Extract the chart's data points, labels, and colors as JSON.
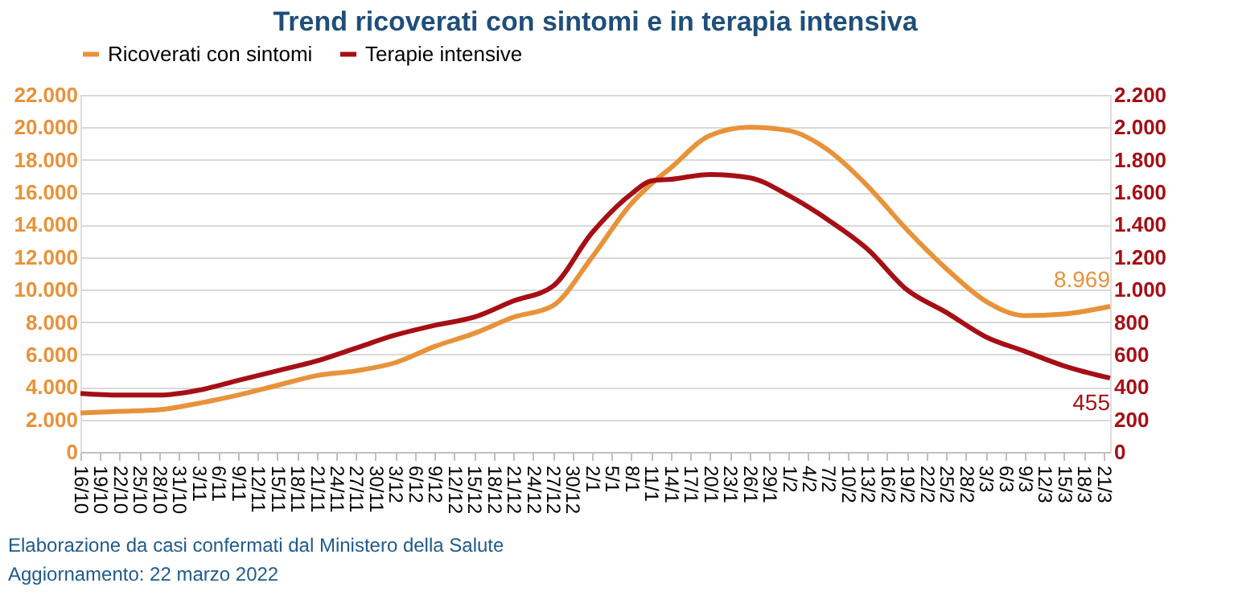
{
  "chart_data": {
    "type": "line",
    "title": "Trend ricoverati con sintomi e in terapia intensiva",
    "x": [
      "2021-10-16",
      "2021-10-22",
      "2021-10-28",
      "2021-11-03",
      "2021-11-09",
      "2021-11-15",
      "2021-11-21",
      "2021-11-27",
      "2021-12-03",
      "2021-12-09",
      "2021-12-15",
      "2021-12-21",
      "2021-12-27",
      "2022-01-02",
      "2022-01-08",
      "2022-01-11",
      "2022-01-14",
      "2022-01-20",
      "2022-01-26",
      "2022-02-01",
      "2022-02-07",
      "2022-02-13",
      "2022-02-19",
      "2022-02-25",
      "2022-03-03",
      "2022-03-09",
      "2022-03-15",
      "2022-03-22"
    ],
    "series": [
      {
        "name": "Ricoverati con sintomi",
        "color": "#e8923a",
        "values": [
          2400,
          2500,
          2600,
          3000,
          3500,
          4100,
          4700,
          5000,
          5500,
          6500,
          7300,
          8300,
          9000,
          12000,
          15300,
          16500,
          17500,
          19500,
          20000,
          19800,
          18600,
          16400,
          13700,
          11300,
          9300,
          8400,
          8500,
          8969
        ],
        "value_labels": [
          null,
          null,
          null,
          null,
          null,
          null,
          null,
          null,
          null,
          null,
          null,
          null,
          null,
          null,
          null,
          null,
          null,
          null,
          null,
          null,
          null,
          null,
          null,
          null,
          null,
          null,
          null,
          "8.969"
        ]
      },
      {
        "name": "Terapie intensive",
        "color": "#a50f15",
        "axis": "y2",
        "values": [
          360,
          350,
          350,
          380,
          440,
          500,
          560,
          640,
          720,
          780,
          830,
          930,
          1020,
          1350,
          1590,
          1670,
          1680,
          1710,
          1690,
          1580,
          1430,
          1250,
          1000,
          860,
          710,
          620,
          530,
          455
        ],
        "value_labels": [
          null,
          null,
          null,
          null,
          null,
          null,
          null,
          null,
          null,
          null,
          null,
          null,
          null,
          null,
          null,
          null,
          null,
          null,
          null,
          null,
          null,
          null,
          null,
          null,
          null,
          null,
          null,
          "455"
        ]
      }
    ],
    "xlim": [
      "2021-10-16",
      "2022-03-22"
    ],
    "xticks": [
      {
        "value": "2021-10-16",
        "label": "16/10"
      },
      {
        "value": "2021-10-19",
        "label": "19/10"
      },
      {
        "value": "2021-10-22",
        "label": "22/10"
      },
      {
        "value": "2021-10-25",
        "label": "25/10"
      },
      {
        "value": "2021-10-28",
        "label": "28/10"
      },
      {
        "value": "2021-10-31",
        "label": "31/10"
      },
      {
        "value": "2021-11-03",
        "label": "3/11"
      },
      {
        "value": "2021-11-06",
        "label": "6/11"
      },
      {
        "value": "2021-11-09",
        "label": "9/11"
      },
      {
        "value": "2021-11-12",
        "label": "12/11"
      },
      {
        "value": "2021-11-15",
        "label": "15/11"
      },
      {
        "value": "2021-11-18",
        "label": "18/11"
      },
      {
        "value": "2021-11-21",
        "label": "21/11"
      },
      {
        "value": "2021-11-24",
        "label": "24/11"
      },
      {
        "value": "2021-11-27",
        "label": "27/11"
      },
      {
        "value": "2021-11-30",
        "label": "30/11"
      },
      {
        "value": "2021-12-03",
        "label": "3/12"
      },
      {
        "value": "2021-12-06",
        "label": "6/12"
      },
      {
        "value": "2021-12-09",
        "label": "9/12"
      },
      {
        "value": "2021-12-12",
        "label": "12/12"
      },
      {
        "value": "2021-12-15",
        "label": "15/12"
      },
      {
        "value": "2021-12-18",
        "label": "18/12"
      },
      {
        "value": "2021-12-21",
        "label": "21/12"
      },
      {
        "value": "2021-12-24",
        "label": "24/12"
      },
      {
        "value": "2021-12-27",
        "label": "27/12"
      },
      {
        "value": "2021-12-30",
        "label": "30/12"
      },
      {
        "value": "2022-01-02",
        "label": "2/1"
      },
      {
        "value": "2022-01-05",
        "label": "5/1"
      },
      {
        "value": "2022-01-08",
        "label": "8/1"
      },
      {
        "value": "2022-01-11",
        "label": "11/1"
      },
      {
        "value": "2022-01-14",
        "label": "14/1"
      },
      {
        "value": "2022-01-17",
        "label": "17/1"
      },
      {
        "value": "2022-01-20",
        "label": "20/1"
      },
      {
        "value": "2022-01-23",
        "label": "23/1"
      },
      {
        "value": "2022-01-26",
        "label": "26/1"
      },
      {
        "value": "2022-01-29",
        "label": "29/1"
      },
      {
        "value": "2022-02-01",
        "label": "1/2"
      },
      {
        "value": "2022-02-04",
        "label": "4/2"
      },
      {
        "value": "2022-02-07",
        "label": "7/2"
      },
      {
        "value": "2022-02-10",
        "label": "10/2"
      },
      {
        "value": "2022-02-13",
        "label": "13/2"
      },
      {
        "value": "2022-02-16",
        "label": "16/2"
      },
      {
        "value": "2022-02-19",
        "label": "19/2"
      },
      {
        "value": "2022-02-22",
        "label": "22/2"
      },
      {
        "value": "2022-02-25",
        "label": "25/2"
      },
      {
        "value": "2022-02-28",
        "label": "28/2"
      },
      {
        "value": "2022-03-03",
        "label": "3/3"
      },
      {
        "value": "2022-03-06",
        "label": "6/3"
      },
      {
        "value": "2022-03-09",
        "label": "9/3"
      },
      {
        "value": "2022-03-12",
        "label": "12/3"
      },
      {
        "value": "2022-03-15",
        "label": "15/3"
      },
      {
        "value": "2022-03-18",
        "label": "18/3"
      },
      {
        "value": "2022-03-21",
        "label": "21/3"
      }
    ],
    "ylim": [
      0,
      22000
    ],
    "yticks": [
      {
        "value": 0,
        "label": "0"
      },
      {
        "value": 2000,
        "label": "2.000"
      },
      {
        "value": 4000,
        "label": "4.000"
      },
      {
        "value": 6000,
        "label": "6.000"
      },
      {
        "value": 8000,
        "label": "8.000"
      },
      {
        "value": 10000,
        "label": "10.000"
      },
      {
        "value": 12000,
        "label": "12.000"
      },
      {
        "value": 14000,
        "label": "14.000"
      },
      {
        "value": 16000,
        "label": "16.000"
      },
      {
        "value": 18000,
        "label": "18.000"
      },
      {
        "value": 20000,
        "label": "20.000"
      },
      {
        "value": 22000,
        "label": "22.000"
      }
    ],
    "y2lim": [
      0,
      2200
    ],
    "y2ticks": [
      {
        "value": 0,
        "label": "0"
      },
      {
        "value": 200,
        "label": "200"
      },
      {
        "value": 400,
        "label": "400"
      },
      {
        "value": 600,
        "label": "600"
      },
      {
        "value": 800,
        "label": "800"
      },
      {
        "value": 1000,
        "label": "1.000"
      },
      {
        "value": 1200,
        "label": "1.200"
      },
      {
        "value": 1400,
        "label": "1.400"
      },
      {
        "value": 1600,
        "label": "1.600"
      },
      {
        "value": 1800,
        "label": "1.800"
      },
      {
        "value": 2000,
        "label": "2.000"
      },
      {
        "value": 2200,
        "label": "2.200"
      }
    ],
    "grid": "y",
    "legend": "top",
    "annotations": [
      "Elaborazione da casi confermati dal Ministero della Salute",
      "Aggiornamento: 22 marzo 2022"
    ]
  }
}
